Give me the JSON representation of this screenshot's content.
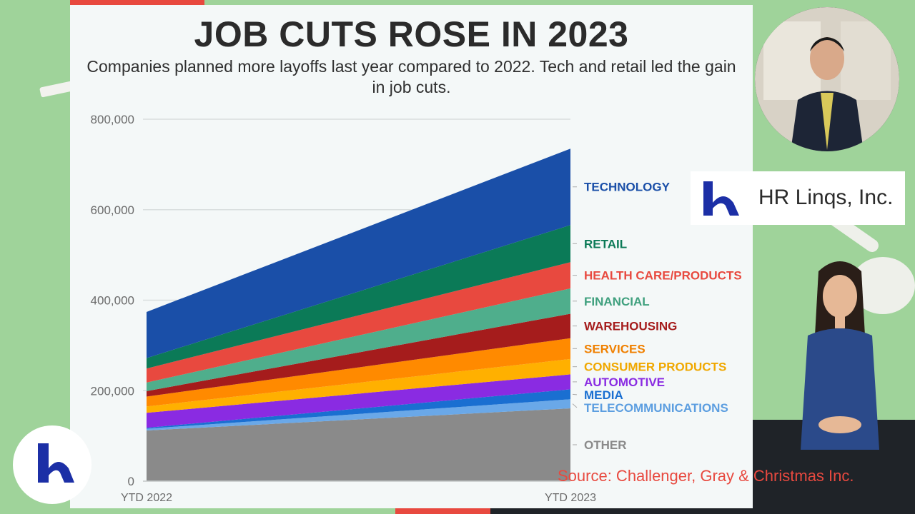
{
  "header": {
    "title": "JOB CUTS ROSE IN 2023",
    "subtitle": "Companies planned more layoffs last year compared to 2022. Tech and retail led the gain in job cuts."
  },
  "brand": {
    "name": "HR Linqs, Inc.",
    "color": "#1c2fa6"
  },
  "source": "Source: Challenger, Gray & Christmas Inc.",
  "chart_data": {
    "type": "area",
    "stacked": true,
    "title": "JOB CUTS ROSE IN 2023",
    "xlabel": "",
    "ylabel": "",
    "categories": [
      "YTD 2022",
      "YTD 2023"
    ],
    "ylim": [
      0,
      800000
    ],
    "yticks": [
      0,
      200000,
      400000,
      600000,
      800000
    ],
    "ytick_labels": [
      "0",
      "200,000",
      "400,000",
      "600,000",
      "800,000"
    ],
    "grid": true,
    "legend_position": "right",
    "series": [
      {
        "name": "OTHER",
        "color": "#8a8a8a",
        "label_color": "#8a8a8a",
        "values": [
          112000,
          161000
        ]
      },
      {
        "name": "TELECOMMUNICATIONS",
        "color": "#6aa8e8",
        "label_color": "#5c9ee0",
        "values": [
          4000,
          20000
        ]
      },
      {
        "name": "MEDIA",
        "color": "#1a6fd1",
        "label_color": "#1a6fd1",
        "values": [
          2000,
          22000
        ]
      },
      {
        "name": "AUTOMOTIVE",
        "color": "#8a2be2",
        "label_color": "#8a2be2",
        "values": [
          33000,
          33000
        ]
      },
      {
        "name": "CONSUMER PRODUCTS",
        "color": "#ffb000",
        "label_color": "#f0a800",
        "values": [
          14000,
          34000
        ]
      },
      {
        "name": "SERVICES",
        "color": "#ff8a00",
        "label_color": "#f08000",
        "values": [
          22000,
          46000
        ]
      },
      {
        "name": "WAREHOUSING",
        "color": "#a51c1c",
        "label_color": "#a51c1c",
        "values": [
          12000,
          54000
        ]
      },
      {
        "name": "FINANCIAL",
        "color": "#4fae8c",
        "label_color": "#3fa07e",
        "values": [
          19000,
          56000
        ]
      },
      {
        "name": "HEALTH CARE/PRODUCTS",
        "color": "#e8493f",
        "label_color": "#e8493f",
        "values": [
          31000,
          58000
        ]
      },
      {
        "name": "RETAIL",
        "color": "#0b7a57",
        "label_color": "#0b7a57",
        "values": [
          23000,
          82000
        ]
      },
      {
        "name": "TECHNOLOGY",
        "color": "#1a4fa8",
        "label_color": "#1a4fa8",
        "values": [
          102000,
          169000
        ]
      }
    ]
  }
}
